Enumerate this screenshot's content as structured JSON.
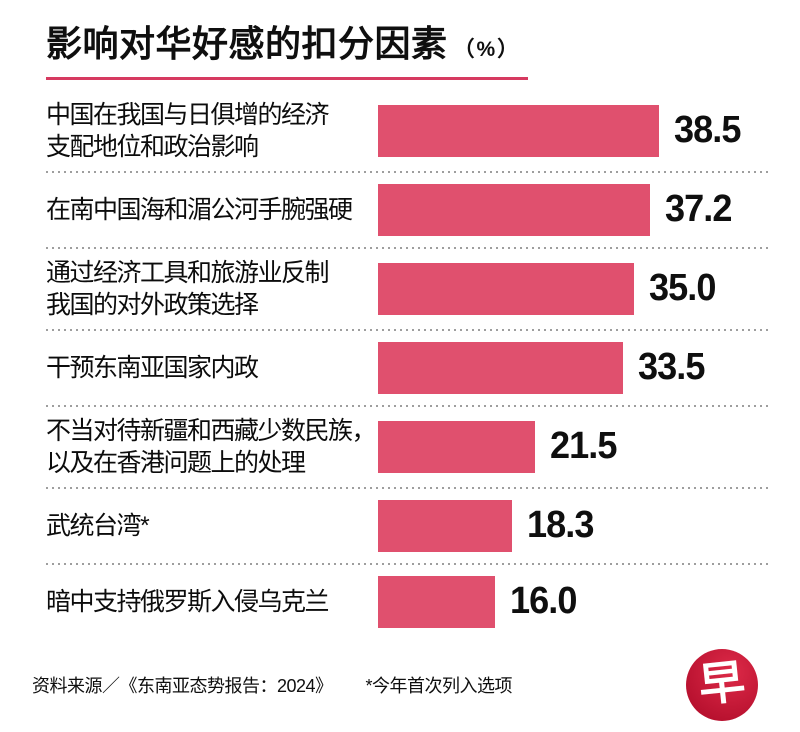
{
  "title": {
    "text": "影响对华好感的扣分因素",
    "suffix": "（%）"
  },
  "colors": {
    "accent": "#d63a60",
    "bar": "#e0506e",
    "dot": "#9e9e9e",
    "logo": "#b8112f"
  },
  "chart_data": {
    "type": "bar",
    "orientation": "horizontal",
    "title": "影响对华好感的扣分因素（%）",
    "unit": "%",
    "categories": [
      "中国在我国与日俱增的经济支配地位和政治影响",
      "在南中国海和湄公河手腕强硬",
      "通过经济工具和旅游业反制我国的对外政策选择",
      "干预东南亚国家内政",
      "不当对待新疆和西藏少数民族，以及在香港问题上的处理",
      "武统台湾*",
      "暗中支持俄罗斯入侵乌克兰"
    ],
    "values": [
      38.5,
      37.2,
      35.0,
      33.5,
      21.5,
      18.3,
      16.0
    ],
    "xlim": [
      0,
      40
    ],
    "grid": false,
    "legend": false,
    "value_labels": "end-of-bar",
    "bar_color": "#e0506e"
  },
  "rows": [
    {
      "label": "中国在我国与日俱增的经济\n支配地位和政治影响",
      "value": 38.5,
      "value_label": "38.5"
    },
    {
      "label": "在南中国海和湄公河手腕强硬",
      "value": 37.2,
      "value_label": "37.2"
    },
    {
      "label": "通过经济工具和旅游业反制\n我国的对外政策选择",
      "value": 35.0,
      "value_label": "35.0"
    },
    {
      "label": "干预东南亚国家内政",
      "value": 33.5,
      "value_label": "33.5"
    },
    {
      "label": "不当对待新疆和西藏少数民族，\n以及在香港问题上的处理",
      "value": 21.5,
      "value_label": "21.5"
    },
    {
      "label": "武统台湾*",
      "value": 18.3,
      "value_label": "18.3"
    },
    {
      "label": "暗中支持俄罗斯入侵乌克兰",
      "value": 16.0,
      "value_label": "16.0"
    }
  ],
  "footer": {
    "source": "资料来源／《东南亚态势报告：2024》",
    "footnote": "*今年首次列入选项"
  },
  "logo": {
    "char": "早"
  }
}
